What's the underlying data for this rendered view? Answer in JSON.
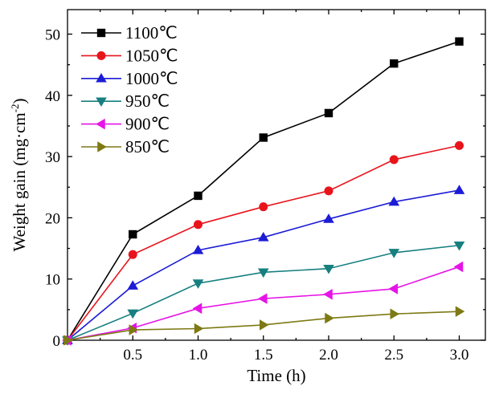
{
  "chart_data": {
    "type": "line",
    "xlabel": "Time (h)",
    "ylabel_main": "Weight gain (mg·cm",
    "ylabel_sup": "-2",
    "ylabel_end": ")",
    "xlim": [
      0,
      3.2
    ],
    "ylim": [
      0,
      54
    ],
    "xticks": [
      0.5,
      1.0,
      1.5,
      2.0,
      2.5,
      3.0
    ],
    "xtick_labels": [
      "0.5",
      "1.0",
      "1.5",
      "2.0",
      "2.5",
      "3.0"
    ],
    "yticks": [
      0,
      10,
      20,
      30,
      40,
      50
    ],
    "ytick_labels": [
      "0",
      "10",
      "20",
      "30",
      "40",
      "50"
    ],
    "x": [
      0,
      0.5,
      1.0,
      1.5,
      2.0,
      2.5,
      3.0
    ],
    "legend_position": "top-left",
    "series": [
      {
        "name": "1100℃",
        "color": "#000000",
        "marker": "square",
        "values": [
          0,
          17.3,
          23.6,
          33.1,
          37.1,
          45.2,
          48.8
        ]
      },
      {
        "name": "1050℃",
        "color": "#e8141c",
        "marker": "circle",
        "values": [
          0,
          14.0,
          18.9,
          21.8,
          24.4,
          29.5,
          31.8
        ]
      },
      {
        "name": "1000℃",
        "color": "#1c1cd6",
        "marker": "triangle-up",
        "values": [
          0,
          8.9,
          14.7,
          16.8,
          19.8,
          22.6,
          24.5
        ]
      },
      {
        "name": "950℃",
        "color": "#177f7f",
        "marker": "triangle-down",
        "values": [
          0,
          4.4,
          9.3,
          11.1,
          11.7,
          14.3,
          15.5
        ]
      },
      {
        "name": "900℃",
        "color": "#e614e6",
        "marker": "triangle-left",
        "values": [
          0,
          2.0,
          5.2,
          6.8,
          7.5,
          8.4,
          12.0
        ]
      },
      {
        "name": "850℃",
        "color": "#7d7a14",
        "marker": "triangle-right",
        "values": [
          0,
          1.7,
          1.9,
          2.5,
          3.6,
          4.3,
          4.7
        ]
      }
    ]
  }
}
